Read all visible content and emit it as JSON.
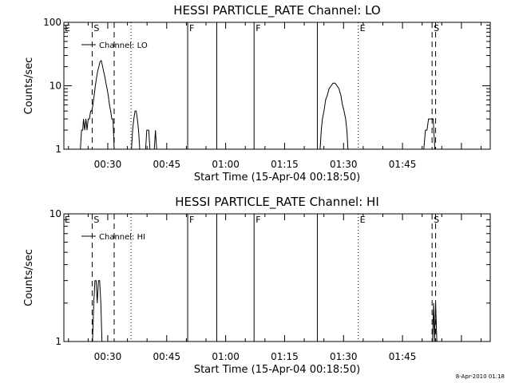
{
  "footer": {
    "stamp": "8-Apr-2010 01:18"
  },
  "chart_data": [
    {
      "type": "line",
      "title": "HESSI PARTICLE_RATE Channel: LO",
      "xlabel": "Start Time (15-Apr-04 00:18:50)",
      "ylabel": "Counts/sec",
      "yscale": "log",
      "ylim": [
        1,
        100
      ],
      "xlim_minutes": [
        0,
        108.5
      ],
      "xticks": [
        {
          "t": 11.17,
          "label": "00:30"
        },
        {
          "t": 26.17,
          "label": "00:45"
        },
        {
          "t": 41.17,
          "label": "01:00"
        },
        {
          "t": 56.17,
          "label": "01:15"
        },
        {
          "t": 71.17,
          "label": "01:30"
        },
        {
          "t": 86.17,
          "label": "01:45"
        }
      ],
      "yticks": [
        {
          "v": 1,
          "label": "1"
        },
        {
          "v": 10,
          "label": "10"
        },
        {
          "v": 100,
          "label": "100"
        }
      ],
      "legend": {
        "label": "Channel: LO",
        "position": "top-left"
      },
      "markers": [
        {
          "t": 7.2,
          "style": "dashed",
          "flag": "S"
        },
        {
          "t": 12.8,
          "style": "dashed",
          "flag": ""
        },
        {
          "t": 17.1,
          "style": "dotted",
          "flag": ""
        },
        {
          "t": 31.5,
          "style": "solid",
          "flag": "F"
        },
        {
          "t": 38.9,
          "style": "solid",
          "flag": ""
        },
        {
          "t": 48.4,
          "style": "solid",
          "flag": "F"
        },
        {
          "t": 64.5,
          "style": "solid",
          "flag": ""
        },
        {
          "t": 74.9,
          "style": "dotted",
          "flag": "E"
        },
        {
          "t": 93.7,
          "style": "dashed",
          "flag": "S"
        },
        {
          "t": 94.6,
          "style": "dashed",
          "flag": ""
        }
      ],
      "left_flag": "E",
      "series": [
        {
          "name": "Channel: LO",
          "segments": [
            [
              [
                4.2,
                1
              ],
              [
                4.5,
                2
              ],
              [
                4.8,
                2
              ],
              [
                5.0,
                3
              ],
              [
                5.3,
                2
              ],
              [
                5.6,
                3
              ],
              [
                5.9,
                2
              ],
              [
                6.2,
                3
              ],
              [
                6.5,
                3
              ],
              [
                6.8,
                4
              ],
              [
                7.1,
                4
              ],
              [
                7.4,
                5
              ],
              [
                7.7,
                7
              ],
              [
                8.0,
                10
              ],
              [
                8.3,
                13
              ],
              [
                8.6,
                17
              ],
              [
                8.9,
                20
              ],
              [
                9.2,
                24
              ],
              [
                9.5,
                25
              ],
              [
                9.8,
                21
              ],
              [
                10.1,
                17
              ],
              [
                10.4,
                14
              ],
              [
                10.7,
                11
              ],
              [
                11.0,
                9
              ],
              [
                11.3,
                7
              ],
              [
                11.6,
                5
              ],
              [
                11.9,
                4
              ],
              [
                12.2,
                3
              ],
              [
                12.5,
                3
              ],
              [
                12.8,
                1
              ]
            ],
            [
              [
                17.2,
                1
              ],
              [
                17.5,
                2
              ],
              [
                17.8,
                3
              ],
              [
                18.1,
                4
              ],
              [
                18.4,
                4
              ],
              [
                18.7,
                3
              ],
              [
                19.0,
                2
              ],
              [
                19.3,
                1
              ]
            ],
            [
              [
                20.8,
                1
              ],
              [
                21.1,
                2
              ],
              [
                21.6,
                2
              ],
              [
                21.9,
                1
              ]
            ],
            [
              [
                23.0,
                1
              ],
              [
                23.3,
                2
              ],
              [
                23.6,
                1
              ]
            ],
            [
              [
                65.2,
                1
              ],
              [
                65.5,
                2
              ],
              [
                65.8,
                3
              ],
              [
                66.2,
                4
              ],
              [
                66.6,
                6
              ],
              [
                67.0,
                7
              ],
              [
                67.5,
                9
              ],
              [
                68.0,
                10
              ],
              [
                68.5,
                11
              ],
              [
                69.0,
                11
              ],
              [
                69.5,
                10
              ],
              [
                70.0,
                9
              ],
              [
                70.5,
                7
              ],
              [
                70.9,
                5
              ],
              [
                71.3,
                4
              ],
              [
                71.7,
                3
              ],
              [
                72.0,
                2
              ],
              [
                72.3,
                1
              ]
            ],
            [
              [
                91.6,
                1
              ],
              [
                92.0,
                2
              ],
              [
                92.4,
                2
              ],
              [
                92.8,
                3
              ],
              [
                93.5,
                3
              ],
              [
                94.0,
                3
              ],
              [
                94.4,
                1
              ]
            ]
          ]
        }
      ]
    },
    {
      "type": "line",
      "title": "HESSI PARTICLE_RATE Channel: HI",
      "xlabel": "Start Time (15-Apr-04 00:18:50)",
      "ylabel": "Counts/sec",
      "yscale": "log",
      "ylim": [
        1,
        10
      ],
      "xlim_minutes": [
        0,
        108.5
      ],
      "xticks": [
        {
          "t": 11.17,
          "label": "00:30"
        },
        {
          "t": 26.17,
          "label": "00:45"
        },
        {
          "t": 41.17,
          "label": "01:00"
        },
        {
          "t": 56.17,
          "label": "01:15"
        },
        {
          "t": 71.17,
          "label": "01:30"
        },
        {
          "t": 86.17,
          "label": "01:45"
        }
      ],
      "yticks": [
        {
          "v": 1,
          "label": "1"
        },
        {
          "v": 10,
          "label": "10"
        }
      ],
      "legend": {
        "label": "Channel: HI",
        "position": "top-left"
      },
      "markers": [
        {
          "t": 7.2,
          "style": "dashed",
          "flag": "S"
        },
        {
          "t": 12.8,
          "style": "dashed",
          "flag": ""
        },
        {
          "t": 17.1,
          "style": "dotted",
          "flag": ""
        },
        {
          "t": 31.5,
          "style": "solid",
          "flag": "F"
        },
        {
          "t": 38.9,
          "style": "solid",
          "flag": ""
        },
        {
          "t": 48.4,
          "style": "solid",
          "flag": "F"
        },
        {
          "t": 64.5,
          "style": "solid",
          "flag": ""
        },
        {
          "t": 74.9,
          "style": "dotted",
          "flag": "E"
        },
        {
          "t": 93.7,
          "style": "dashed",
          "flag": "S"
        },
        {
          "t": 94.6,
          "style": "dashed",
          "flag": ""
        }
      ],
      "left_flag": "E",
      "series": [
        {
          "name": "Channel: HI",
          "segments": [
            [
              [
                7.3,
                1
              ],
              [
                7.6,
                2
              ],
              [
                7.9,
                3
              ],
              [
                8.2,
                3
              ],
              [
                8.5,
                2
              ],
              [
                8.8,
                3
              ],
              [
                9.1,
                3
              ],
              [
                9.4,
                2
              ],
              [
                9.7,
                1
              ]
            ],
            [
              [
                93.8,
                1
              ],
              [
                94.1,
                2
              ],
              [
                94.3,
                1
              ],
              [
                94.6,
                2
              ],
              [
                94.9,
                1
              ]
            ]
          ]
        }
      ]
    }
  ]
}
